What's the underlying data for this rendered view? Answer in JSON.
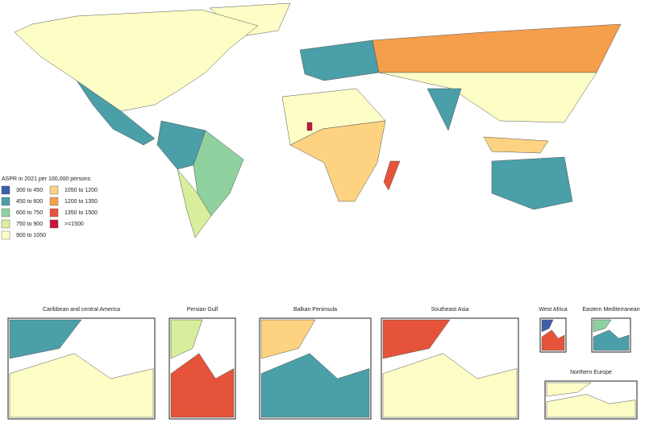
{
  "legend": {
    "title": "ASPR in 2021 per 100,000 persons",
    "items": [
      {
        "label": "300 to 450",
        "color": "#3d5fa9"
      },
      {
        "label": "450 to 600",
        "color": "#4a9fa8"
      },
      {
        "label": "600 to 750",
        "color": "#8fd19f"
      },
      {
        "label": "750 to 900",
        "color": "#d8ee9c"
      },
      {
        "label": "900 to 1050",
        "color": "#fdfdc6"
      },
      {
        "label": "1050 to 1200",
        "color": "#fdd281"
      },
      {
        "label": "1200 to 1350",
        "color": "#f59e4c"
      },
      {
        "label": "1350 to 1500",
        "color": "#e5543a"
      },
      {
        "label": ">=1500",
        "color": "#c7143b"
      }
    ]
  },
  "insets": [
    {
      "title": "Caribbean and central America"
    },
    {
      "title": "Persian Gulf"
    },
    {
      "title": "Balkan Peninsula"
    },
    {
      "title": "Southeast Asia"
    },
    {
      "title": "West Africa"
    },
    {
      "title": "Eastern Mediterranean"
    },
    {
      "title": "Northern Europe"
    }
  ]
}
